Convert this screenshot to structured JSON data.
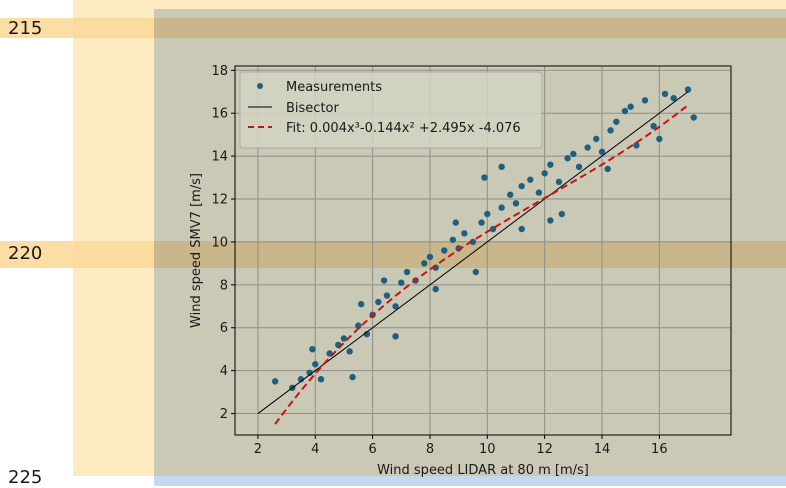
{
  "row_labels": [
    "215",
    "220",
    "225"
  ],
  "chart_data": {
    "type": "scatter",
    "title": "",
    "xlabel": "Wind speed LIDAR at 80 m [m/s]",
    "ylabel": "Wind speed SMV7 [m/s]",
    "xlim": [
      1.2,
      18.5
    ],
    "ylim": [
      1.0,
      18.2
    ],
    "xticks": [
      2,
      4,
      6,
      8,
      10,
      12,
      14,
      16
    ],
    "yticks": [
      2,
      4,
      6,
      8,
      10,
      12,
      14,
      16,
      18
    ],
    "grid": true,
    "legend_position": "upper-left",
    "colors": {
      "measurements": "#1f5f80",
      "bisector": "#000000",
      "fit": "#cc1111",
      "plot_bg": "#c9c9b6"
    },
    "series": [
      {
        "name": "Measurements",
        "kind": "scatter",
        "points": [
          [
            2.6,
            3.5
          ],
          [
            3.2,
            3.2
          ],
          [
            3.5,
            3.6
          ],
          [
            3.8,
            3.9
          ],
          [
            4.0,
            4.3
          ],
          [
            4.2,
            3.6
          ],
          [
            4.5,
            4.8
          ],
          [
            4.8,
            5.2
          ],
          [
            5.0,
            5.5
          ],
          [
            5.2,
            4.9
          ],
          [
            5.5,
            6.1
          ],
          [
            5.8,
            5.7
          ],
          [
            6.0,
            6.6
          ],
          [
            6.2,
            7.2
          ],
          [
            6.5,
            7.5
          ],
          [
            6.8,
            7.0
          ],
          [
            7.0,
            8.1
          ],
          [
            7.2,
            8.6
          ],
          [
            7.5,
            8.2
          ],
          [
            7.8,
            9.0
          ],
          [
            8.0,
            9.3
          ],
          [
            8.2,
            8.8
          ],
          [
            8.5,
            9.6
          ],
          [
            8.8,
            10.1
          ],
          [
            9.0,
            9.7
          ],
          [
            9.2,
            10.4
          ],
          [
            9.5,
            10.0
          ],
          [
            9.8,
            10.9
          ],
          [
            10.0,
            11.3
          ],
          [
            10.2,
            10.6
          ],
          [
            10.5,
            11.6
          ],
          [
            10.8,
            12.2
          ],
          [
            11.0,
            11.8
          ],
          [
            11.2,
            12.6
          ],
          [
            11.5,
            12.9
          ],
          [
            11.8,
            12.3
          ],
          [
            12.0,
            13.2
          ],
          [
            12.2,
            13.6
          ],
          [
            12.5,
            12.8
          ],
          [
            12.8,
            13.9
          ],
          [
            13.0,
            14.1
          ],
          [
            13.2,
            13.5
          ],
          [
            13.5,
            14.4
          ],
          [
            13.8,
            14.8
          ],
          [
            14.0,
            14.2
          ],
          [
            14.3,
            15.2
          ],
          [
            14.5,
            15.6
          ],
          [
            14.8,
            16.1
          ],
          [
            15.0,
            16.3
          ],
          [
            15.2,
            14.5
          ],
          [
            15.5,
            16.6
          ],
          [
            15.8,
            15.4
          ],
          [
            16.0,
            14.8
          ],
          [
            16.2,
            16.9
          ],
          [
            16.5,
            16.7
          ],
          [
            17.0,
            17.1
          ],
          [
            17.2,
            15.8
          ],
          [
            5.3,
            3.7
          ],
          [
            6.8,
            5.6
          ],
          [
            8.2,
            7.8
          ],
          [
            9.6,
            8.6
          ],
          [
            11.2,
            10.6
          ],
          [
            12.2,
            11.0
          ],
          [
            12.6,
            11.3
          ],
          [
            14.2,
            13.4
          ],
          [
            3.9,
            5.0
          ],
          [
            5.6,
            7.1
          ],
          [
            6.4,
            8.2
          ],
          [
            8.9,
            10.9
          ],
          [
            10.5,
            13.5
          ],
          [
            9.9,
            13.0
          ]
        ]
      },
      {
        "name": "Bisector",
        "kind": "line",
        "x": [
          2.0,
          17.0
        ],
        "y": [
          2.0,
          17.0
        ]
      },
      {
        "name": "Fit: 0.004x³-0.144x² +2.495x -4.076",
        "kind": "fit-curve",
        "coefficients": [
          0.004,
          -0.144,
          2.495,
          -4.076
        ],
        "x_range": [
          2.6,
          17.0
        ]
      }
    ]
  }
}
